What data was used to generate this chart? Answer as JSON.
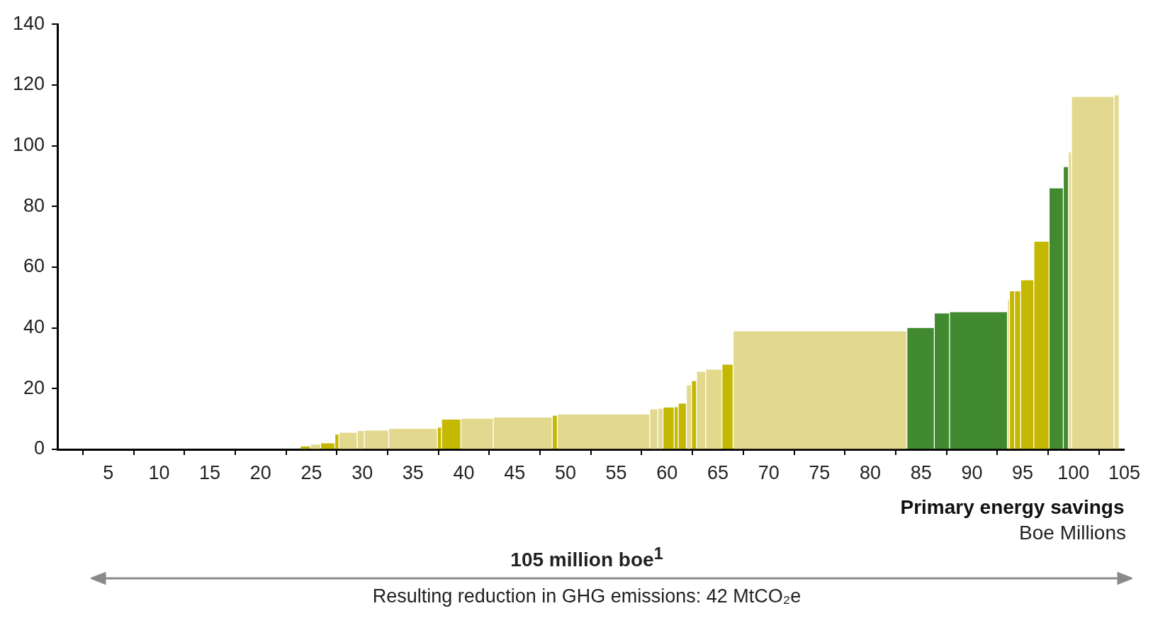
{
  "chart_data": {
    "type": "histogram",
    "bins": [
      23.9,
      24.9,
      25.9,
      27.3,
      27.7,
      29.5,
      30.2,
      32.6,
      37.4,
      37.8,
      39.7,
      42.9,
      48.7,
      49.2,
      58.3,
      59.1,
      59.6,
      60.7,
      61.1,
      61.9,
      62.4,
      62.9,
      63.8,
      65.4,
      66.5,
      83.6,
      86.3,
      87.8,
      93.5,
      93.7,
      94.2,
      94.8,
      96.1,
      97.6,
      99.0,
      99.5,
      99.8,
      104.0,
      104.5
    ],
    "values": [
      0.9,
      1.5,
      1.9,
      4.8,
      5.4,
      6.0,
      6.1,
      6.7,
      7.1,
      9.7,
      10.0,
      10.4,
      11.0,
      11.4,
      13.1,
      13.3,
      13.7,
      13.8,
      15.0,
      21.0,
      22.4,
      25.5,
      26.2,
      27.8,
      38.8,
      39.9,
      44.7,
      45.1,
      49,
      52,
      52,
      55.6,
      68.3,
      85.9,
      92.9,
      97.7,
      116,
      116.5
    ],
    "colors": [
      "#c4b800",
      "#e3d98e",
      "#c4b800",
      "#c4b800",
      "#e3d98e",
      "#e3d98e",
      "#e3d98e",
      "#e3d98e",
      "#c4b800",
      "#c4b800",
      "#e3d98e",
      "#e3d98e",
      "#c4b800",
      "#e3d98e",
      "#e3d98e",
      "#e3d98e",
      "#c4b800",
      "#c4b800",
      "#c4b800",
      "#e3d98e",
      "#c4b800",
      "#e3d98e",
      "#e3d98e",
      "#c4b800",
      "#e3d98e",
      "#418a2f",
      "#418a2f",
      "#418a2f",
      "#e3d98e",
      "#c4b800",
      "#c4b800",
      "#c4b800",
      "#c4b800",
      "#418a2f",
      "#418a2f",
      "#e3d98e",
      "#e3d98e",
      "#e3d98e"
    ],
    "xlim": [
      0,
      105
    ],
    "xticks": [
      5,
      10,
      15,
      20,
      25,
      30,
      35,
      40,
      45,
      50,
      55,
      60,
      65,
      70,
      75,
      80,
      85,
      90,
      95,
      100,
      105
    ],
    "ylim": [
      0,
      140
    ],
    "yticks": [
      0,
      20,
      40,
      60,
      80,
      100,
      120,
      140
    ],
    "grid": false,
    "legend": false,
    "xlabel": "Primary energy savings",
    "annotations": [
      "Boe Millions",
      "105 million boe$^{1}$",
      "Resulting reduction in GHG emissions: 42 MtCO₂e"
    ]
  }
}
